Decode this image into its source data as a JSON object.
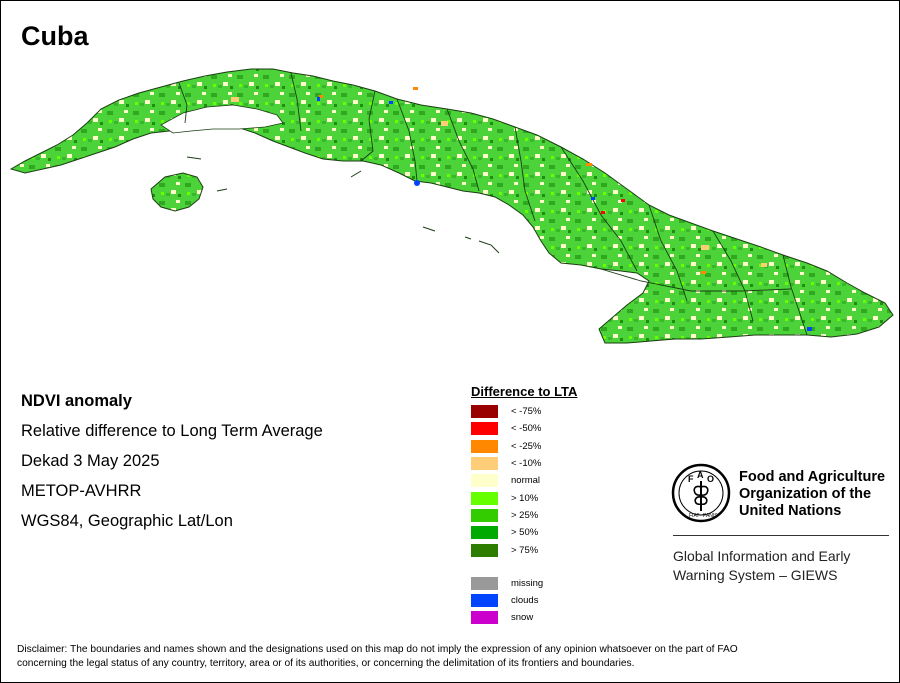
{
  "title": "Cuba",
  "info": {
    "line1": "NDVI anomaly",
    "line2": "Relative difference to Long Term Average",
    "line3": "Dekad 3 May 2025",
    "line4": "METOP-AVHRR",
    "line5": "WGS84, Geographic Lat/Lon"
  },
  "legend": {
    "title": "Difference to LTA",
    "items": [
      {
        "label": "< -75%",
        "color": "#990000"
      },
      {
        "label": "< -50%",
        "color": "#ff0000"
      },
      {
        "label": "< -25%",
        "color": "#ff8800"
      },
      {
        "label": "< -10%",
        "color": "#ffcc77"
      },
      {
        "label": "normal",
        "color": "#ffffcc"
      },
      {
        "label": "> 10%",
        "color": "#66ff00"
      },
      {
        "label": "> 25%",
        "color": "#33cc00"
      },
      {
        "label": "> 50%",
        "color": "#00aa00"
      },
      {
        "label": "> 75%",
        "color": "#2e7d00"
      }
    ],
    "extra": [
      {
        "label": "missing",
        "color": "#999999"
      },
      {
        "label": "clouds",
        "color": "#0044ff"
      },
      {
        "label": "snow",
        "color": "#cc00cc"
      }
    ]
  },
  "org": {
    "logo_text": "FAO",
    "logo_motto": "FIAT PANIS",
    "name_line1": "Food and Agriculture",
    "name_line2": "Organization of the",
    "name_line3": "United Nations",
    "system_line1": "Global Information and Early",
    "system_line2": "Warning System – GIEWS"
  },
  "disclaimer": {
    "line1": "Disclaimer: The boundaries and names shown and the designations used on this map do not imply the expression of any opinion whatsoever on the part of FAO",
    "line2": "concerning the legal status of any country, territory, area or of its authorities, or concerning the delimitation of its frontiers and boundaries."
  }
}
